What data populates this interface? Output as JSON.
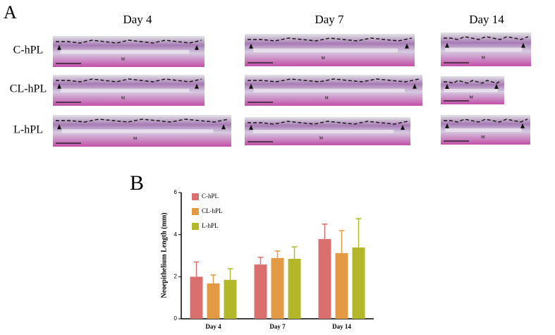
{
  "panel_a": {
    "label": "A",
    "columns": [
      "Day 4",
      "Day 7",
      "Day 14"
    ],
    "rows": [
      "C-hPL",
      "CL-hPL",
      "L-hPL"
    ],
    "tissue_label": "M"
  },
  "panel_b": {
    "label": "B"
  },
  "chart_data": {
    "type": "bar",
    "ylabel": "Neoepithelium Length (mm)",
    "categories": [
      "Day 4",
      "Day 7",
      "Day 14"
    ],
    "series": [
      {
        "name": "C-hPL",
        "color": "#d9706f",
        "values": [
          2.0,
          2.58,
          3.79
        ],
        "errors": [
          0.7,
          0.34,
          0.71
        ]
      },
      {
        "name": "CL-hPL",
        "color": "#e39a45",
        "values": [
          1.68,
          2.89,
          3.12
        ],
        "errors": [
          0.4,
          0.33,
          1.07
        ]
      },
      {
        "name": "L-hPL",
        "color": "#b3b82a",
        "values": [
          1.85,
          2.85,
          3.39
        ],
        "errors": [
          0.53,
          0.57,
          1.37
        ]
      }
    ],
    "ylim": [
      0,
      6
    ],
    "yticks": [
      0,
      2,
      4,
      6
    ],
    "legend": "top-left"
  }
}
